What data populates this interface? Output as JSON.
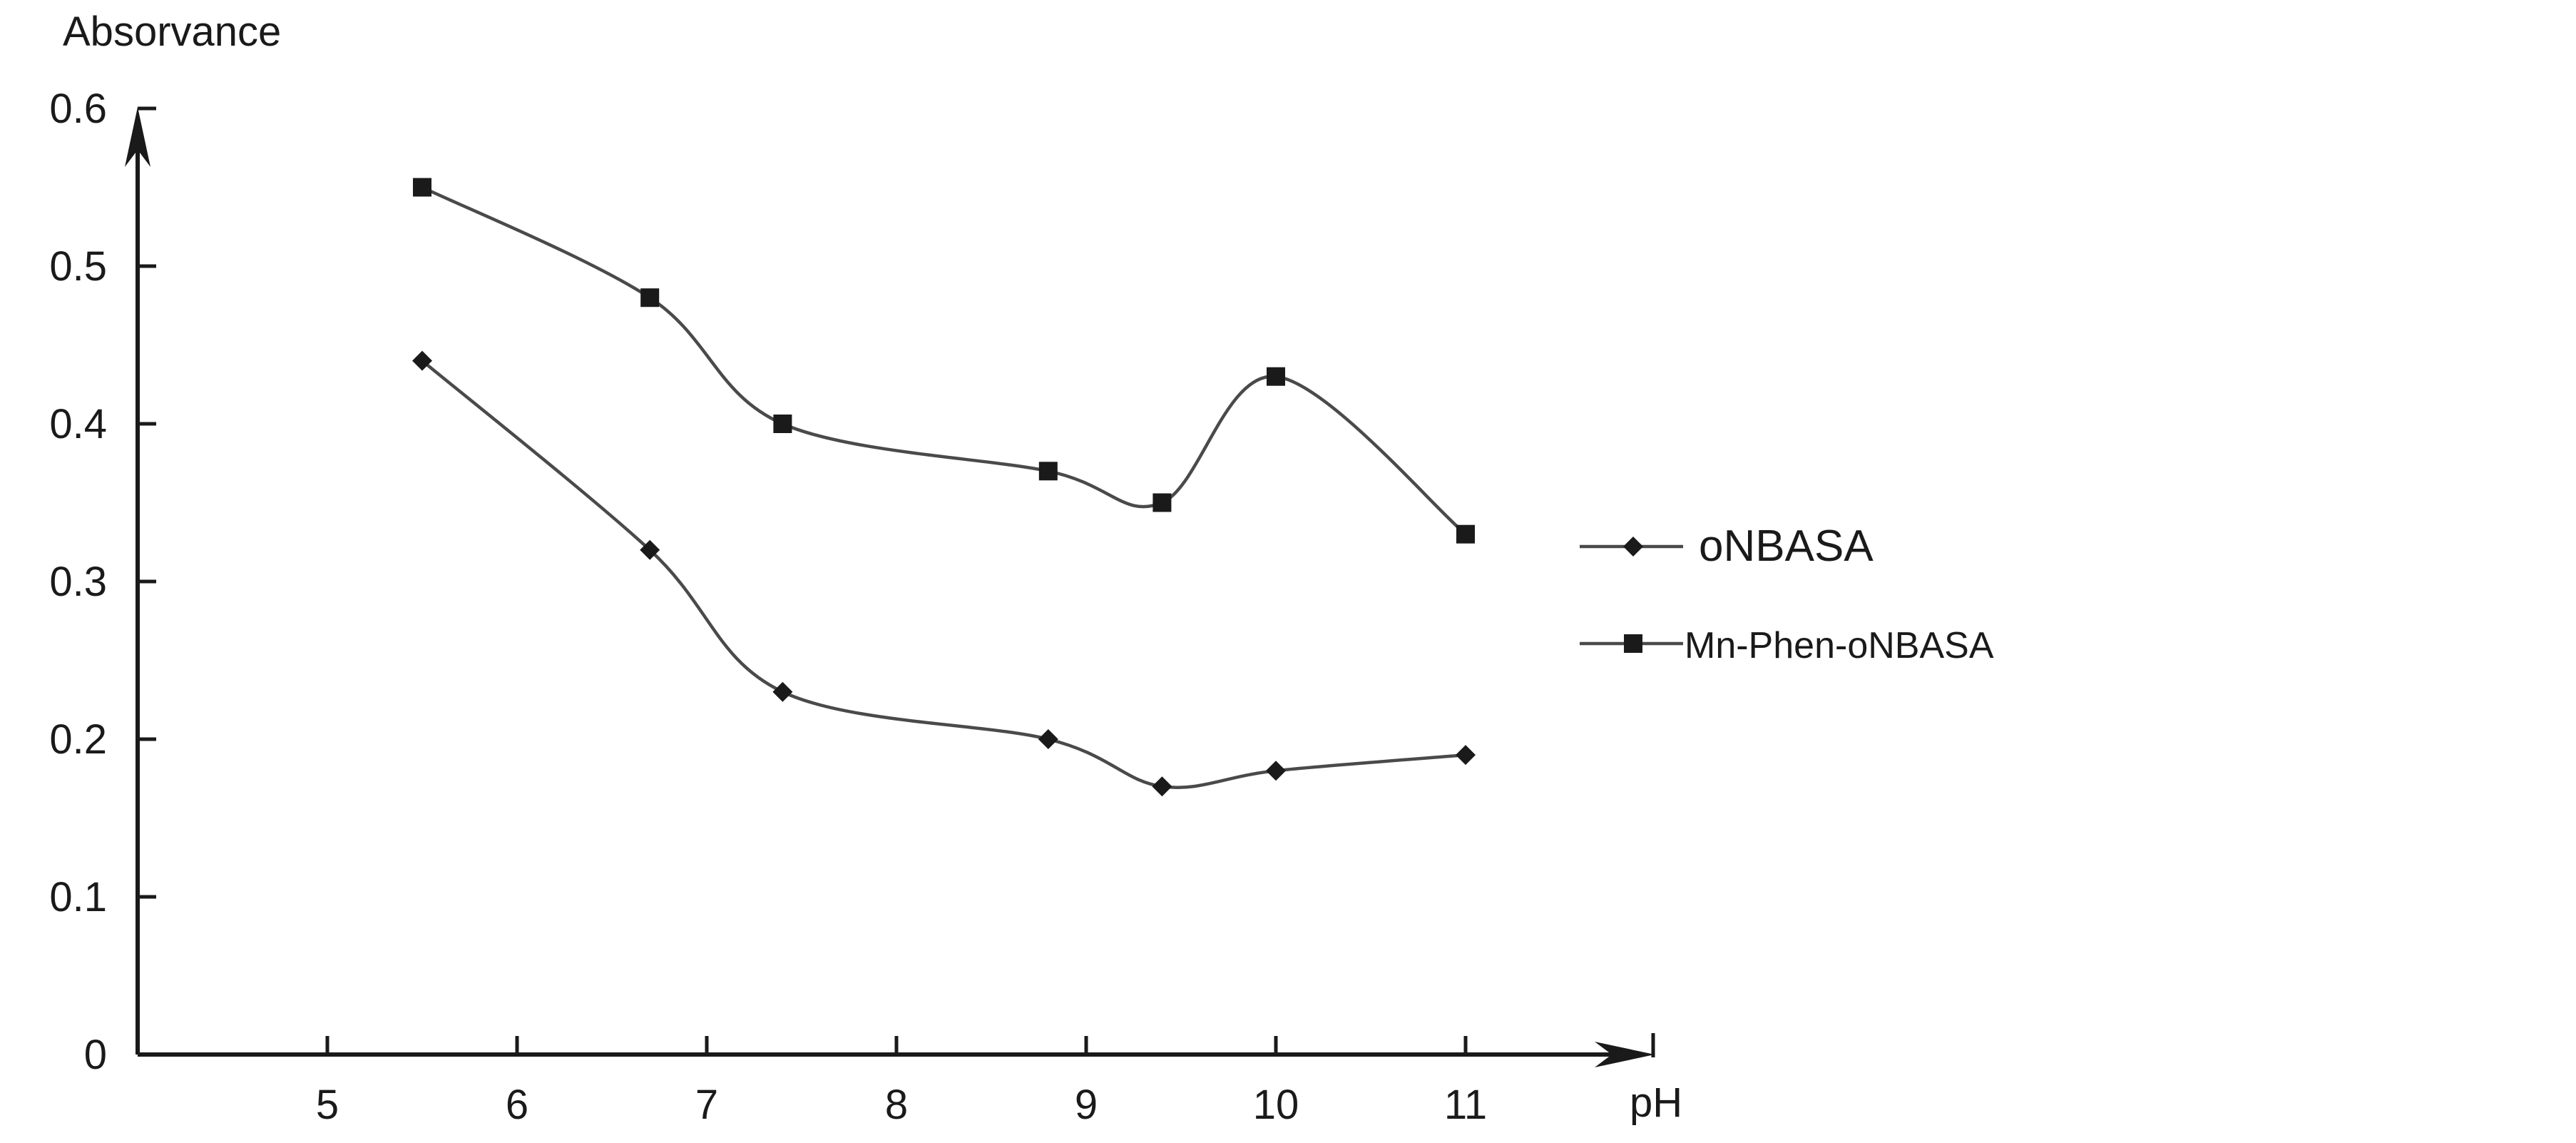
{
  "chart_data": {
    "type": "line",
    "title": "",
    "xlabel": "pH",
    "ylabel": "Absorvance",
    "xlim": [
      4,
      12
    ],
    "ylim": [
      0,
      0.6
    ],
    "x_ticks": [
      5,
      6,
      7,
      8,
      9,
      10,
      11
    ],
    "x_tick_labels": [
      "5",
      "6",
      "7",
      "8",
      "9",
      "10",
      "11"
    ],
    "y_ticks": [
      0,
      0.1,
      0.2,
      0.3,
      0.4,
      0.5,
      0.6
    ],
    "y_tick_labels": [
      "0",
      "0.1",
      "0.2",
      "0.3",
      "0.4",
      "0.5",
      "0.6"
    ],
    "grid": false,
    "legend_position": "right",
    "series": [
      {
        "name": "oNBASA",
        "marker": "diamond",
        "color": "#1a1a1a",
        "line_color": "#4a4a4a",
        "x": [
          5.5,
          6.7,
          7.4,
          8.8,
          9.4,
          10.0,
          11.0
        ],
        "values": [
          0.44,
          0.32,
          0.23,
          0.2,
          0.17,
          0.18,
          0.19
        ]
      },
      {
        "name": "Mn-Phen-oNBASA",
        "marker": "square",
        "color": "#1a1a1a",
        "line_color": "#4a4a4a",
        "x": [
          5.5,
          6.7,
          7.4,
          8.8,
          9.4,
          10.0,
          11.0
        ],
        "values": [
          0.55,
          0.48,
          0.4,
          0.37,
          0.35,
          0.43,
          0.33
        ]
      }
    ]
  }
}
